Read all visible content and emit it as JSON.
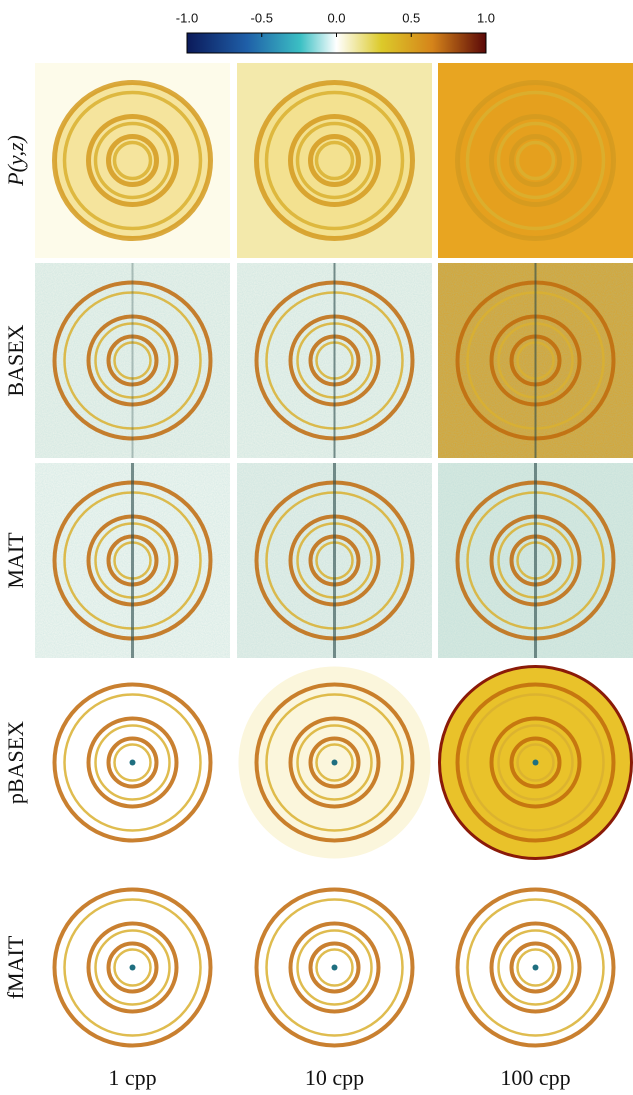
{
  "colorbar": {
    "ticks": [
      {
        "value": -1.0,
        "label": "-1.0"
      },
      -0.5,
      {
        "value": 0.0,
        "label": "0.0"
      },
      0.5,
      {
        "value": 1.0,
        "label": "1.0"
      }
    ],
    "lim": [
      -1.0,
      1.0
    ]
  },
  "rows": [
    "P(y,z)",
    "BASEX",
    "MAIT",
    "pBASEX",
    "fMAIT"
  ],
  "columns": [
    "1 cpp",
    "10 cpp",
    "100 cpp"
  ]
}
